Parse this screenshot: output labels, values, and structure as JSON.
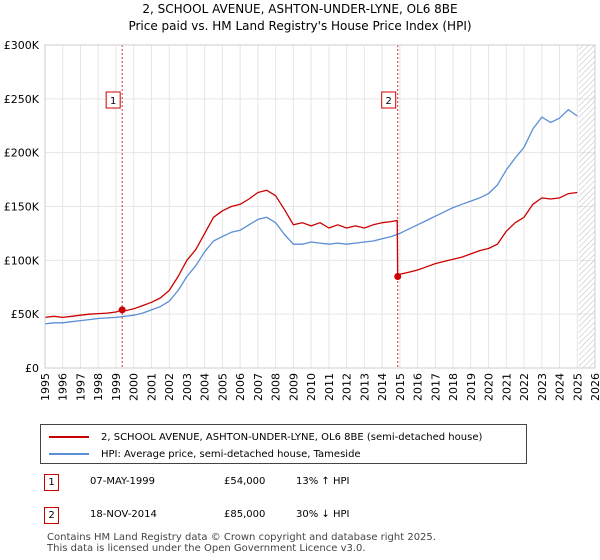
{
  "title_line1": "2, SCHOOL AVENUE, ASHTON-UNDER-LYNE, OL6 8BE",
  "title_line2": "Price paid vs. HM Land Registry's House Price Index (HPI)",
  "colors": {
    "property": "#cc0000",
    "hpi": "#5b8ed6",
    "marker": "#cc0000",
    "grid": "#e6e6e6",
    "hatch": "#bbbbbb"
  },
  "legend": {
    "property_label": "2, SCHOOL AVENUE, ASHTON-UNDER-LYNE, OL6 8BE (semi-detached house)",
    "hpi_label": "HPI: Average price, semi-detached house, Tameside"
  },
  "transactions": [
    {
      "marker": "1",
      "date": "07-MAY-1999",
      "price": "£54,000",
      "hpi_change": "13% ↑ HPI"
    },
    {
      "marker": "2",
      "date": "18-NOV-2014",
      "price": "£85,000",
      "hpi_change": "30% ↓ HPI"
    }
  ],
  "footer_line1": "Contains HM Land Registry data © Crown copyright and database right 2025.",
  "footer_line2": "This data is licensed under the Open Government Licence v3.0.",
  "chart_data": {
    "type": "line",
    "xlim": [
      1995,
      2026
    ],
    "ylim": [
      0,
      300000
    ],
    "yticks": [
      0,
      50000,
      100000,
      150000,
      200000,
      250000,
      300000
    ],
    "ytick_labels": [
      "£0",
      "£50K",
      "£100K",
      "£150K",
      "£200K",
      "£250K",
      "£300K"
    ],
    "xticks": [
      1995,
      1996,
      1997,
      1998,
      1999,
      2000,
      2001,
      2002,
      2003,
      2004,
      2005,
      2006,
      2007,
      2008,
      2009,
      2010,
      2011,
      2012,
      2013,
      2014,
      2015,
      2016,
      2017,
      2018,
      2019,
      2020,
      2021,
      2022,
      2023,
      2024,
      2025,
      2026
    ],
    "forecast_start": 2025.08,
    "sales": [
      {
        "label": "1",
        "x": 1999.35,
        "y": 54000
      },
      {
        "label": "2",
        "x": 2014.88,
        "y": 85000
      }
    ],
    "series": [
      {
        "name": "2, SCHOOL AVENUE, ASHTON-UNDER-LYNE, OL6 8BE (semi-detached house)",
        "x": [
          1995.0,
          1995.5,
          1996.0,
          1996.5,
          1997.0,
          1997.5,
          1998.0,
          1998.5,
          1999.0,
          1999.35,
          1999.5,
          2000.0,
          2000.5,
          2001.0,
          2001.5,
          2002.0,
          2002.5,
          2003.0,
          2003.5,
          2004.0,
          2004.5,
          2005.0,
          2005.5,
          2006.0,
          2006.5,
          2007.0,
          2007.5,
          2008.0,
          2008.5,
          2009.0,
          2009.5,
          2010.0,
          2010.5,
          2011.0,
          2011.5,
          2012.0,
          2012.5,
          2013.0,
          2013.5,
          2014.0,
          2014.5,
          2014.85,
          2014.88,
          2015.0,
          2015.5,
          2016.0,
          2016.5,
          2017.0,
          2017.5,
          2018.0,
          2018.5,
          2019.0,
          2019.5,
          2020.0,
          2020.5,
          2021.0,
          2021.5,
          2022.0,
          2022.5,
          2023.0,
          2023.5,
          2024.0,
          2024.5,
          2025.0
        ],
        "y": [
          47000,
          48000,
          47000,
          48000,
          49000,
          50000,
          50500,
          51000,
          52000,
          54000,
          53000,
          55000,
          58000,
          61000,
          65000,
          72000,
          85000,
          100000,
          110000,
          125000,
          140000,
          146000,
          150000,
          152000,
          157000,
          163000,
          165000,
          160000,
          147000,
          133000,
          135000,
          132000,
          135000,
          130000,
          133000,
          130000,
          132000,
          130000,
          133000,
          135000,
          136000,
          137000,
          85000,
          87000,
          89000,
          91000,
          94000,
          97000,
          99000,
          101000,
          103000,
          106000,
          109000,
          111000,
          115000,
          127000,
          135000,
          140000,
          152000,
          158000,
          157000,
          158000,
          162000,
          163000
        ]
      },
      {
        "name": "HPI: Average price, semi-detached house, Tameside",
        "x": [
          1995.0,
          1995.5,
          1996.0,
          1996.5,
          1997.0,
          1997.5,
          1998.0,
          1998.5,
          1999.0,
          1999.5,
          2000.0,
          2000.5,
          2001.0,
          2001.5,
          2002.0,
          2002.5,
          2003.0,
          2003.5,
          2004.0,
          2004.5,
          2005.0,
          2005.5,
          2006.0,
          2006.5,
          2007.0,
          2007.5,
          2008.0,
          2008.5,
          2009.0,
          2009.5,
          2010.0,
          2010.5,
          2011.0,
          2011.5,
          2012.0,
          2012.5,
          2013.0,
          2013.5,
          2014.0,
          2014.5,
          2015.0,
          2015.5,
          2016.0,
          2016.5,
          2017.0,
          2017.5,
          2018.0,
          2018.5,
          2019.0,
          2019.5,
          2020.0,
          2020.5,
          2021.0,
          2021.5,
          2022.0,
          2022.5,
          2023.0,
          2023.5,
          2024.0,
          2024.5,
          2025.0
        ],
        "y": [
          41000,
          42000,
          42000,
          43000,
          44000,
          45000,
          46000,
          46500,
          47000,
          48000,
          49000,
          51000,
          54000,
          57000,
          62000,
          72000,
          85000,
          95000,
          108000,
          118000,
          122000,
          126000,
          128000,
          133000,
          138000,
          140000,
          135000,
          124000,
          115000,
          115000,
          117000,
          116000,
          115000,
          116000,
          115000,
          116000,
          117000,
          118000,
          120000,
          122000,
          125000,
          129000,
          133000,
          137000,
          141000,
          145000,
          149000,
          152000,
          155000,
          158000,
          162000,
          170000,
          184000,
          195000,
          205000,
          222000,
          233000,
          228000,
          232000,
          240000,
          234000
        ]
      }
    ]
  }
}
